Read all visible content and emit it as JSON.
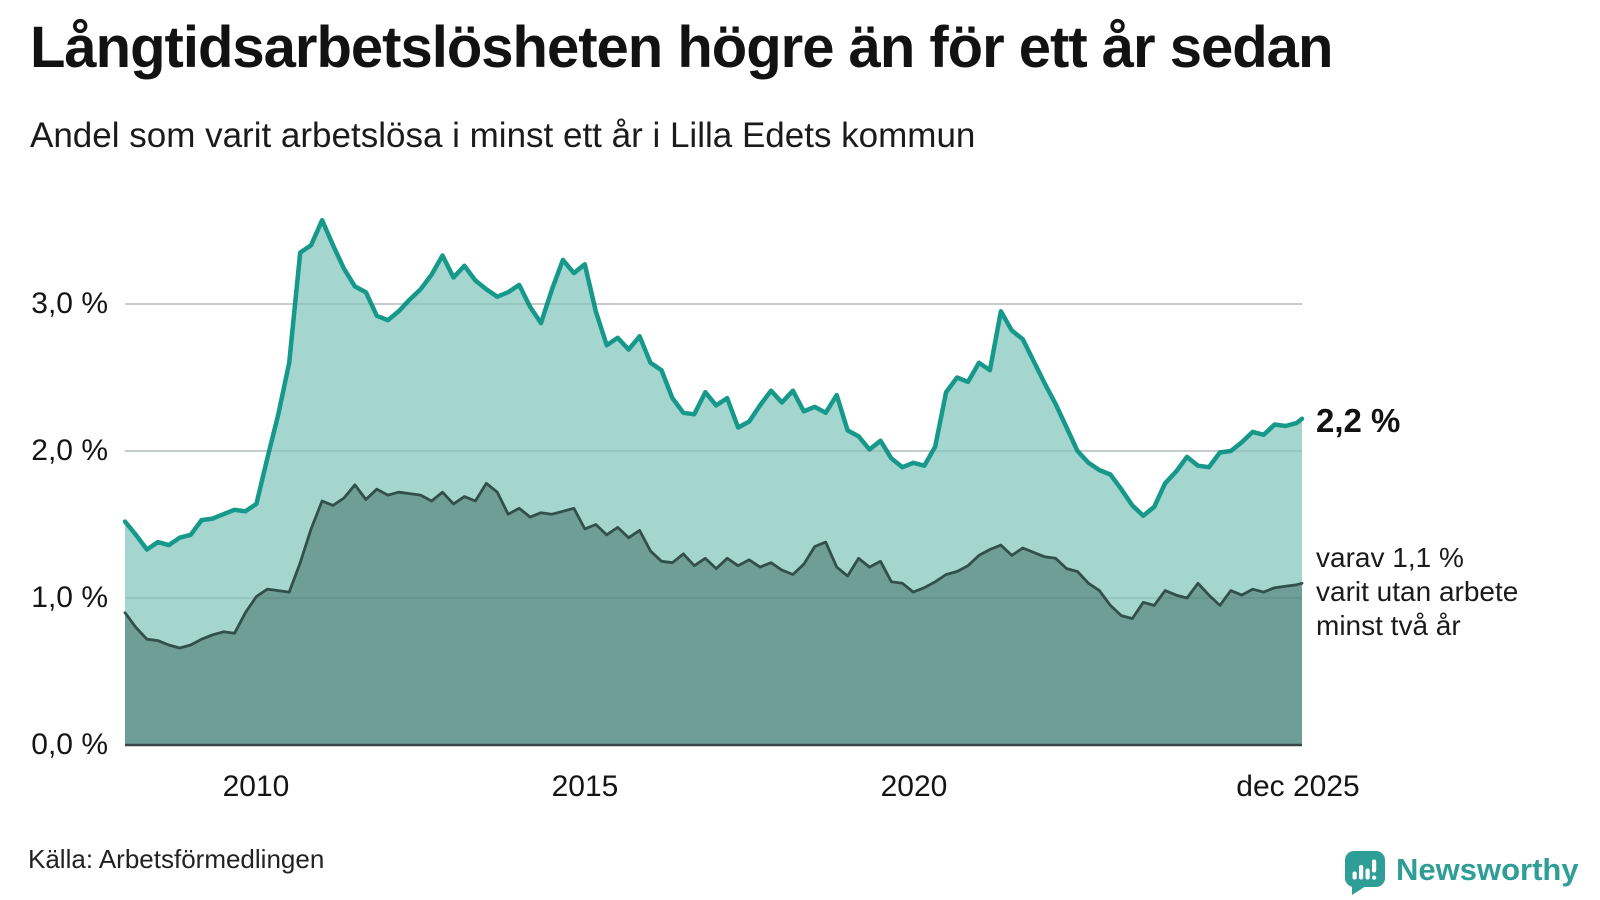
{
  "header": {
    "title": "Långtidsarbetslösheten högre än för ett år sedan",
    "subtitle": "Andel som varit arbetslösa i minst ett år i Lilla Edets kommun"
  },
  "annotations": {
    "end_value_total": "2,2 %",
    "end_note_lines": [
      "varav 1,1 %",
      "varit utan arbete",
      "minst två år"
    ]
  },
  "footer": {
    "source": "Källa: Arbetsförmedlingen",
    "brand": "Newsworthy"
  },
  "colors": {
    "accent_teal": "#16998a",
    "light_fill": "#a4d5cf",
    "dark_fill": "#6f9d98",
    "dark_line": "#31504c",
    "grid": "#d9dbdd",
    "grid_overlay": "rgba(42,66,66,0.10)",
    "axis": "#3a4345",
    "brand_teal": "#2f9e97",
    "text": "#121212"
  },
  "chart_data": {
    "type": "area",
    "title": "Långtidsarbetslösheten högre än för ett år sedan",
    "subtitle": "Andel som varit arbetslösa i minst ett år i Lilla Edets kommun",
    "unit": "%",
    "grid": true,
    "legend_position": "end-of-line labels",
    "xlim": [
      2008,
      2025.917
    ],
    "ylim": [
      0,
      3.7
    ],
    "x_ticks": [
      "2010",
      "2015",
      "2020",
      "dec 2025"
    ],
    "x_tick_values": [
      2010,
      2015,
      2020,
      2025.917
    ],
    "y_ticks": [
      "3,0 %",
      "2,0 %",
      "1,0 %",
      "0,0 %"
    ],
    "y_tick_values": [
      3,
      2,
      1,
      0
    ],
    "t_start": 2008,
    "t_step_years": 0.166667,
    "series": [
      {
        "id": "unemployed-at-least-one-year",
        "name": "Andel arbetslösa i minst ett år",
        "end_label": "2,2 %",
        "end_value": 2.2,
        "color": "#16998a",
        "fill": "#a4d5cf",
        "stroke_width": 4.5,
        "values": [
          1.52,
          1.43,
          1.33,
          1.38,
          1.36,
          1.41,
          1.43,
          1.53,
          1.54,
          1.57,
          1.6,
          1.59,
          1.64,
          1.95,
          2.25,
          2.6,
          3.35,
          3.4,
          3.57,
          3.4,
          3.24,
          3.12,
          3.08,
          2.92,
          2.89,
          2.95,
          3.03,
          3.1,
          3.2,
          3.33,
          3.18,
          3.26,
          3.16,
          3.1,
          3.05,
          3.08,
          3.13,
          2.98,
          2.87,
          3.1,
          3.3,
          3.21,
          3.27,
          2.95,
          2.72,
          2.77,
          2.69,
          2.78,
          2.6,
          2.55,
          2.36,
          2.26,
          2.25,
          2.4,
          2.31,
          2.36,
          2.16,
          2.2,
          2.31,
          2.41,
          2.33,
          2.41,
          2.27,
          2.3,
          2.26,
          2.38,
          2.14,
          2.1,
          2.01,
          2.07,
          1.95,
          1.89,
          1.92,
          1.9,
          2.03,
          2.4,
          2.5,
          2.47,
          2.6,
          2.55,
          2.95,
          2.82,
          2.76,
          2.61,
          2.46,
          2.32,
          2.16,
          2.0,
          1.92,
          1.87,
          1.84,
          1.74,
          1.63,
          1.56,
          1.62,
          1.78,
          1.86,
          1.96,
          1.9,
          1.89,
          1.99,
          2.0,
          2.06,
          2.13,
          2.11,
          2.18,
          2.17,
          2.19,
          2.22
        ]
      },
      {
        "id": "unemployed-at-least-two-years",
        "name": "varav utan arbete minst två år",
        "end_label": "1,1 %",
        "end_value": 1.1,
        "color": "#31504c",
        "fill": "#6f9d98",
        "stroke_width": 2.8,
        "values": [
          0.9,
          0.8,
          0.72,
          0.71,
          0.68,
          0.66,
          0.68,
          0.72,
          0.75,
          0.77,
          0.76,
          0.9,
          1.01,
          1.06,
          1.05,
          1.04,
          1.24,
          1.47,
          1.66,
          1.63,
          1.68,
          1.77,
          1.67,
          1.74,
          1.7,
          1.72,
          1.71,
          1.7,
          1.66,
          1.72,
          1.64,
          1.69,
          1.66,
          1.78,
          1.72,
          1.57,
          1.61,
          1.55,
          1.58,
          1.57,
          1.59,
          1.61,
          1.47,
          1.5,
          1.43,
          1.48,
          1.41,
          1.46,
          1.32,
          1.25,
          1.24,
          1.3,
          1.22,
          1.27,
          1.2,
          1.27,
          1.22,
          1.26,
          1.21,
          1.24,
          1.19,
          1.16,
          1.23,
          1.35,
          1.38,
          1.21,
          1.15,
          1.27,
          1.21,
          1.25,
          1.11,
          1.1,
          1.04,
          1.07,
          1.11,
          1.16,
          1.18,
          1.22,
          1.29,
          1.33,
          1.36,
          1.29,
          1.34,
          1.31,
          1.28,
          1.27,
          1.2,
          1.18,
          1.1,
          1.05,
          0.95,
          0.88,
          0.86,
          0.97,
          0.95,
          1.05,
          1.02,
          1.0,
          1.1,
          1.02,
          0.95,
          1.05,
          1.02,
          1.06,
          1.04,
          1.07,
          1.08,
          1.09,
          1.1
        ]
      }
    ]
  }
}
